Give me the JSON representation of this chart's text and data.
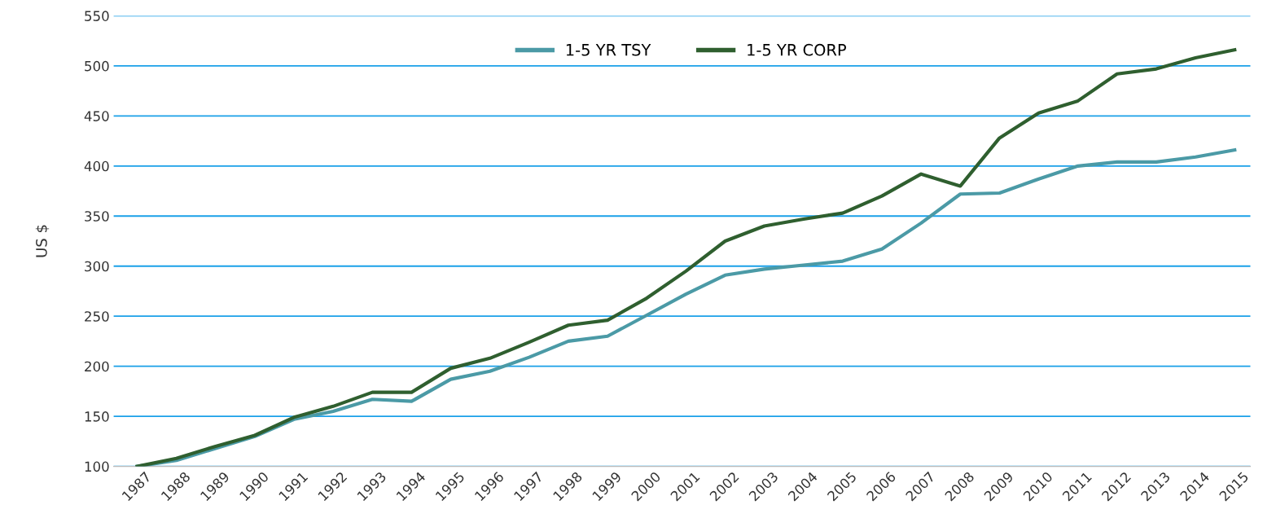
{
  "chart_data": {
    "type": "line",
    "ylabel": "US $",
    "categories": [
      "1987",
      "1988",
      "1989",
      "1990",
      "1991",
      "1992",
      "1993",
      "1994",
      "1995",
      "1996",
      "1997",
      "1998",
      "1999",
      "2000",
      "2001",
      "2002",
      "2003",
      "2004",
      "2005",
      "2006",
      "2007",
      "2008",
      "2009",
      "2010",
      "2011",
      "2012",
      "2013",
      "2014",
      "2015"
    ],
    "series": [
      {
        "name": "1-5 YR TSY",
        "color": "#4b9aa6",
        "values": [
          100,
          106,
          118,
          130,
          147,
          155,
          167,
          165,
          187,
          195,
          209,
          225,
          230,
          251,
          272,
          291,
          297,
          301,
          305,
          317,
          343,
          372,
          373,
          387,
          400,
          404,
          404,
          409,
          416
        ]
      },
      {
        "name": "1-5 YR CORP",
        "color": "#2f5f2f",
        "values": [
          100,
          108,
          120,
          131,
          149,
          160,
          174,
          174,
          198,
          208,
          224,
          241,
          246,
          268,
          295,
          325,
          340,
          347,
          353,
          370,
          392,
          380,
          428,
          453,
          465,
          492,
          497,
          508,
          516
        ]
      }
    ],
    "ylim": [
      100,
      550
    ],
    "yticks": [
      100,
      150,
      200,
      250,
      300,
      350,
      400,
      450,
      500,
      550
    ],
    "grid": "y",
    "legend": "top",
    "marker": "none",
    "line_style": "solid"
  }
}
